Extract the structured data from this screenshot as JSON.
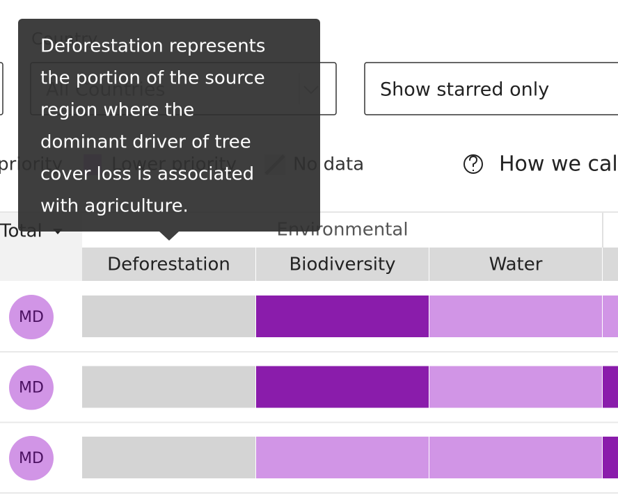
{
  "filters": {
    "country_label": "Country",
    "country_value": "All Countries",
    "starred": "Show starred only"
  },
  "legend": {
    "higher": "priority",
    "lower": "Lower priority",
    "no_data": "No data",
    "help": "How we calc"
  },
  "table": {
    "total": "Total",
    "group": "Environmental",
    "columns": [
      "Deforestation",
      "Biodiversity",
      "Water"
    ],
    "rows": [
      {
        "avatar": "MD",
        "cells": [
          "#d4d4d4",
          "#8a1cab",
          "#d195e6",
          "#d195e6"
        ]
      },
      {
        "avatar": "MD",
        "cells": [
          "#d4d4d4",
          "#8a1cab",
          "#d195e6",
          "#8a1cab"
        ]
      },
      {
        "avatar": "MD",
        "cells": [
          "#d4d4d4",
          "#d195e6",
          "#d195e6",
          "#8a1cab"
        ]
      }
    ]
  },
  "tooltip": {
    "lines": [
      "Deforestation represents",
      "the portion of the source",
      "region where the",
      "dominant driver of tree",
      "cover loss is associated",
      "with agriculture."
    ]
  }
}
